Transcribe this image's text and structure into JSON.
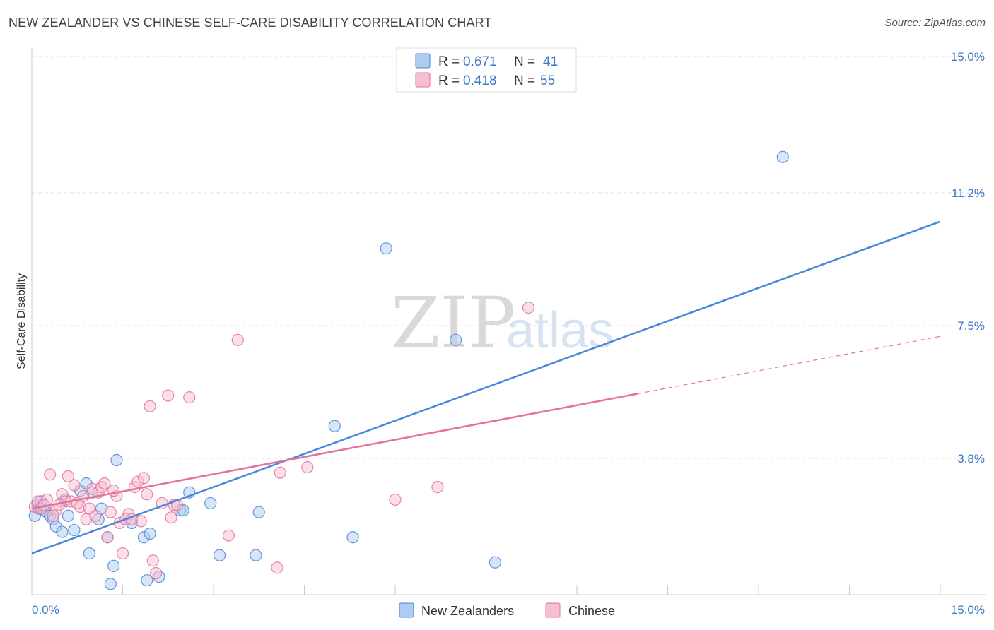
{
  "title": "NEW ZEALANDER VS CHINESE SELF-CARE DISABILITY CORRELATION CHART",
  "source": "Source: ZipAtlas.com",
  "watermark": {
    "zip": "ZIP",
    "atlas": "atlas"
  },
  "chart_data": {
    "type": "scatter",
    "xlabel": "",
    "ylabel": "Self-Care Disability",
    "xlim": [
      0,
      15
    ],
    "ylim": [
      0,
      15
    ],
    "x_tick_labels": [
      "0.0%",
      "15.0%"
    ],
    "y_ticks": [
      3.8,
      7.5,
      11.2,
      15.0
    ],
    "y_tick_labels": [
      "3.8%",
      "7.5%",
      "11.2%",
      "15.0%"
    ],
    "grid": true,
    "legend_position": "top-center",
    "legend": [
      {
        "r_label": "R =",
        "r_value": "0.671",
        "n_label": "N =",
        "n_value": "41"
      },
      {
        "r_label": "R =",
        "r_value": "0.418",
        "n_label": "N =",
        "n_value": "55"
      }
    ],
    "series": [
      {
        "name": "New Zealanders",
        "color": "#4a86d8",
        "fill": "#aecbf0",
        "trend": {
          "x0": 0,
          "y0": 1.15,
          "x1": 15,
          "y1": 10.4,
          "solid_until": 15
        },
        "points": [
          [
            0.05,
            2.2
          ],
          [
            0.1,
            2.5
          ],
          [
            0.12,
            2.4
          ],
          [
            0.15,
            2.6
          ],
          [
            0.2,
            2.35
          ],
          [
            0.25,
            2.3
          ],
          [
            0.3,
            2.2
          ],
          [
            0.35,
            2.1
          ],
          [
            0.4,
            1.9
          ],
          [
            0.5,
            1.75
          ],
          [
            0.55,
            2.65
          ],
          [
            0.6,
            2.2
          ],
          [
            0.7,
            1.8
          ],
          [
            0.8,
            2.9
          ],
          [
            0.9,
            3.1
          ],
          [
            0.95,
            1.15
          ],
          [
            1.0,
            2.85
          ],
          [
            1.1,
            2.1
          ],
          [
            1.15,
            2.4
          ],
          [
            1.25,
            1.6
          ],
          [
            1.3,
            0.3
          ],
          [
            1.35,
            0.8
          ],
          [
            1.4,
            3.75
          ],
          [
            1.65,
            2.0
          ],
          [
            1.85,
            1.6
          ],
          [
            1.9,
            0.4
          ],
          [
            1.95,
            1.7
          ],
          [
            2.1,
            0.5
          ],
          [
            2.45,
            2.35
          ],
          [
            2.5,
            2.35
          ],
          [
            2.6,
            2.85
          ],
          [
            2.95,
            2.55
          ],
          [
            3.1,
            1.1
          ],
          [
            3.7,
            1.1
          ],
          [
            3.75,
            2.3
          ],
          [
            5.0,
            4.7
          ],
          [
            5.3,
            1.6
          ],
          [
            5.85,
            9.65
          ],
          [
            7.0,
            7.1
          ],
          [
            7.65,
            0.9
          ],
          [
            12.4,
            12.2
          ]
        ]
      },
      {
        "name": "Chinese",
        "color": "#e3719b",
        "fill": "#f6bed2",
        "trend": {
          "x0": 0,
          "y0": 2.4,
          "x1": 15,
          "y1": 7.2,
          "solid_until": 10.0
        },
        "points": [
          [
            0.05,
            2.45
          ],
          [
            0.1,
            2.6
          ],
          [
            0.15,
            2.4
          ],
          [
            0.25,
            2.65
          ],
          [
            0.3,
            3.35
          ],
          [
            0.4,
            2.35
          ],
          [
            0.5,
            2.8
          ],
          [
            0.55,
            2.6
          ],
          [
            0.6,
            3.3
          ],
          [
            0.65,
            2.6
          ],
          [
            0.7,
            3.05
          ],
          [
            0.8,
            2.45
          ],
          [
            0.85,
            2.75
          ],
          [
            0.9,
            2.1
          ],
          [
            1.0,
            2.95
          ],
          [
            1.05,
            2.2
          ],
          [
            1.1,
            2.85
          ],
          [
            1.15,
            3.0
          ],
          [
            1.2,
            3.1
          ],
          [
            1.25,
            1.6
          ],
          [
            1.3,
            2.3
          ],
          [
            1.4,
            2.75
          ],
          [
            1.45,
            2.0
          ],
          [
            1.5,
            1.15
          ],
          [
            1.55,
            2.1
          ],
          [
            1.6,
            2.25
          ],
          [
            1.7,
            3.0
          ],
          [
            1.75,
            3.15
          ],
          [
            1.8,
            2.05
          ],
          [
            1.85,
            3.25
          ],
          [
            1.9,
            2.8
          ],
          [
            1.95,
            5.25
          ],
          [
            2.0,
            0.95
          ],
          [
            2.05,
            0.6
          ],
          [
            2.15,
            2.55
          ],
          [
            2.25,
            5.55
          ],
          [
            2.3,
            2.15
          ],
          [
            2.35,
            2.5
          ],
          [
            2.6,
            5.5
          ],
          [
            3.25,
            1.65
          ],
          [
            3.4,
            7.1
          ],
          [
            4.05,
            0.75
          ],
          [
            4.1,
            3.4
          ],
          [
            4.55,
            3.55
          ],
          [
            6.0,
            2.65
          ],
          [
            6.7,
            3.0
          ],
          [
            8.2,
            8.0
          ],
          [
            0.2,
            2.5
          ],
          [
            0.45,
            2.5
          ],
          [
            0.75,
            2.55
          ],
          [
            0.95,
            2.4
          ],
          [
            1.35,
            2.9
          ],
          [
            1.65,
            2.1
          ],
          [
            2.4,
            2.5
          ],
          [
            0.35,
            2.2
          ]
        ]
      }
    ]
  }
}
